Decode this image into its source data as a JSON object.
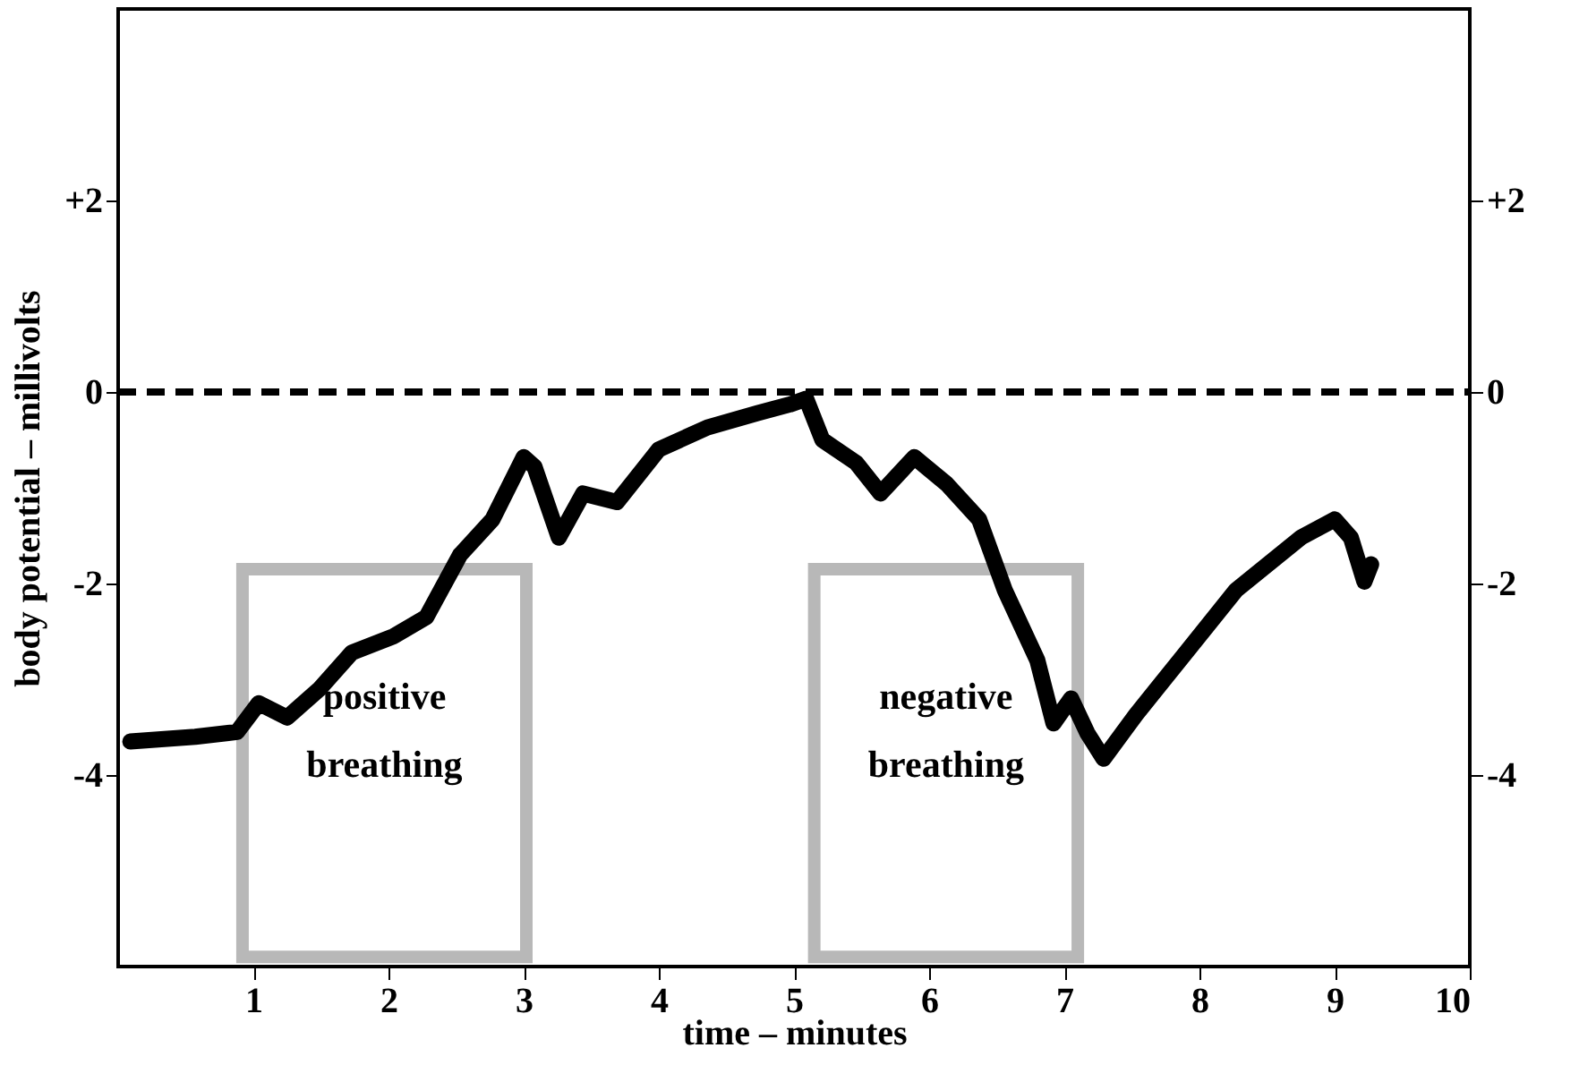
{
  "chart_data": {
    "type": "line",
    "xlabel": "time  –  minutes",
    "ylabel": "body potential  –  millivolts",
    "x": [
      0.09,
      0.57,
      0.88,
      1.04,
      1.25,
      1.49,
      1.73,
      2.04,
      2.28,
      2.53,
      2.77,
      3.0,
      3.08,
      3.26,
      3.44,
      3.69,
      4.0,
      4.36,
      4.73,
      4.97,
      5.09,
      5.21,
      5.46,
      5.64,
      5.89,
      6.13,
      6.37,
      6.56,
      6.8,
      6.92,
      7.05,
      7.17,
      7.29,
      7.53,
      7.9,
      8.27,
      8.75,
      9.0,
      9.12,
      9.22,
      9.27
    ],
    "series": [
      {
        "color": "#000000",
        "values": [
          -3.65,
          -3.6,
          -3.55,
          -3.25,
          -3.4,
          -3.1,
          -2.72,
          -2.55,
          -2.35,
          -1.7,
          -1.33,
          -0.68,
          -0.78,
          -1.52,
          -1.06,
          -1.15,
          -0.6,
          -0.37,
          -0.22,
          -0.13,
          -0.07,
          -0.5,
          -0.74,
          -1.06,
          -0.68,
          -0.96,
          -1.33,
          -2.07,
          -2.8,
          -3.46,
          -3.2,
          -3.56,
          -3.83,
          -3.37,
          -2.72,
          -2.07,
          -1.52,
          -1.33,
          -1.52,
          -1.98,
          -1.8
        ]
      }
    ],
    "xlim": [
      0,
      10
    ],
    "xticks": [
      1,
      2,
      3,
      4,
      5,
      6,
      7,
      8,
      9,
      10
    ],
    "ylim": [
      -6,
      4
    ],
    "yticks": [
      -4,
      -2,
      0,
      {
        "value": 2,
        "label": "+2"
      }
    ],
    "y2lim": [
      -6,
      4
    ],
    "y2ticks": [
      -4,
      -2,
      0,
      {
        "value": 2,
        "label": "+2"
      }
    ],
    "ref_lines": [
      {
        "axis": "y",
        "value": 0,
        "line_style": "dashed"
      }
    ],
    "bands": [
      {
        "axis": "x",
        "from": 0.92,
        "to": 3.02,
        "label": "positive breathing",
        "color": "#b8b8b8"
      },
      {
        "axis": "x",
        "from": 5.15,
        "to": 7.1,
        "label": "negative breathing",
        "color": "#b8b8b8"
      }
    ],
    "line_style": "solid"
  }
}
